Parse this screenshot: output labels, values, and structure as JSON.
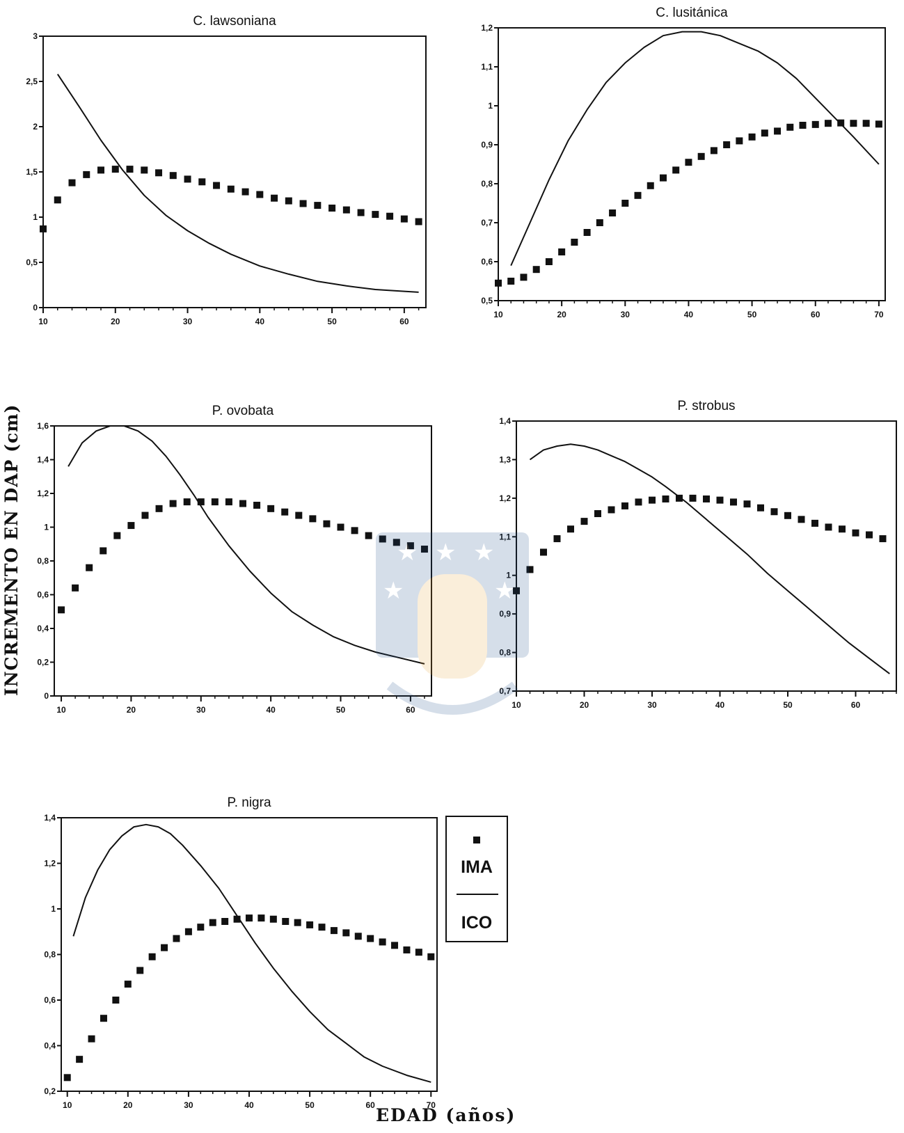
{
  "axis_labels": {
    "y": "INCREMENTO EN DAP (cm)",
    "x": "EDAD (años)"
  },
  "legend": {
    "ima_label": "IMA",
    "ico_label": "ICO",
    "ima_marker": "square-marker",
    "ico_marker": "line"
  },
  "colors": {
    "ink": "#111111"
  },
  "chart_data": [
    {
      "type": "line",
      "title": "C. lawsoniana",
      "xlim": [
        10,
        63
      ],
      "ylim": [
        0,
        3
      ],
      "xticks": [
        10,
        20,
        30,
        40,
        50,
        60
      ],
      "xticklabels": [
        "10",
        "20",
        "30",
        "40",
        "50",
        "60"
      ],
      "yticks": [
        0,
        0.5,
        1,
        1.5,
        2,
        2.5,
        3
      ],
      "yticklabels": [
        "0",
        "0,5",
        "1",
        "1,5",
        "2",
        "2,5",
        "3"
      ],
      "series": [
        {
          "name": "IMA",
          "style": "markers",
          "x": [
            10,
            12,
            14,
            16,
            18,
            20,
            22,
            24,
            26,
            28,
            30,
            32,
            34,
            36,
            38,
            40,
            42,
            44,
            46,
            48,
            50,
            52,
            54,
            56,
            58,
            60,
            62
          ],
          "y": [
            0.87,
            1.19,
            1.38,
            1.47,
            1.52,
            1.53,
            1.53,
            1.52,
            1.49,
            1.46,
            1.42,
            1.39,
            1.35,
            1.31,
            1.28,
            1.25,
            1.21,
            1.18,
            1.15,
            1.13,
            1.1,
            1.08,
            1.05,
            1.03,
            1.01,
            0.98,
            0.95
          ]
        },
        {
          "name": "ICO",
          "style": "line",
          "x": [
            12,
            15,
            18,
            21,
            24,
            27,
            30,
            33,
            36,
            40,
            44,
            48,
            52,
            56,
            60,
            62
          ],
          "y": [
            2.58,
            2.22,
            1.85,
            1.52,
            1.24,
            1.02,
            0.85,
            0.71,
            0.59,
            0.46,
            0.37,
            0.29,
            0.24,
            0.2,
            0.18,
            0.17
          ]
        }
      ]
    },
    {
      "type": "line",
      "title": "C. lusitánica",
      "xlim": [
        10,
        71
      ],
      "ylim": [
        0.5,
        1.2
      ],
      "xticks": [
        10,
        20,
        30,
        40,
        50,
        60,
        70
      ],
      "xticklabels": [
        "10",
        "20",
        "30",
        "40",
        "50",
        "60",
        "70"
      ],
      "yticks": [
        0.5,
        0.6,
        0.7,
        0.8,
        0.9,
        1,
        1.1,
        1.2
      ],
      "yticklabels": [
        "0,5",
        "0,6",
        "0,7",
        "0,8",
        "0,9",
        "1",
        "1,1",
        "1,2"
      ],
      "series": [
        {
          "name": "IMA",
          "style": "markers",
          "x": [
            10,
            12,
            14,
            16,
            18,
            20,
            22,
            24,
            26,
            28,
            30,
            32,
            34,
            36,
            38,
            40,
            42,
            44,
            46,
            48,
            50,
            52,
            54,
            56,
            58,
            60,
            62,
            64,
            66,
            68,
            70
          ],
          "y": [
            0.545,
            0.55,
            0.56,
            0.58,
            0.6,
            0.625,
            0.65,
            0.675,
            0.7,
            0.725,
            0.75,
            0.77,
            0.795,
            0.815,
            0.835,
            0.855,
            0.87,
            0.885,
            0.9,
            0.91,
            0.92,
            0.93,
            0.935,
            0.945,
            0.95,
            0.952,
            0.955,
            0.956,
            0.955,
            0.955,
            0.953
          ]
        },
        {
          "name": "ICO",
          "style": "line",
          "x": [
            12,
            15,
            18,
            21,
            24,
            27,
            30,
            33,
            36,
            39,
            42,
            45,
            48,
            51,
            54,
            57,
            60,
            63,
            66,
            70
          ],
          "y": [
            0.59,
            0.7,
            0.81,
            0.91,
            0.99,
            1.06,
            1.11,
            1.15,
            1.18,
            1.19,
            1.19,
            1.18,
            1.16,
            1.14,
            1.11,
            1.07,
            1.02,
            0.97,
            0.92,
            0.85
          ]
        }
      ]
    },
    {
      "type": "line",
      "title": "P. ovobata",
      "xlim": [
        9,
        63
      ],
      "ylim": [
        0,
        1.6
      ],
      "xticks": [
        10,
        20,
        30,
        40,
        50,
        60
      ],
      "xticklabels": [
        "10",
        "20",
        "30",
        "40",
        "50",
        "60"
      ],
      "yticks": [
        0,
        0.2,
        0.4,
        0.6,
        0.8,
        1,
        1.2,
        1.4,
        1.6
      ],
      "yticklabels": [
        "0",
        "0,2",
        "0,4",
        "0,6",
        "0,8",
        "1",
        "1,2",
        "1,4",
        "1,6"
      ],
      "series": [
        {
          "name": "IMA",
          "style": "markers",
          "x": [
            10,
            12,
            14,
            16,
            18,
            20,
            22,
            24,
            26,
            28,
            30,
            32,
            34,
            36,
            38,
            40,
            42,
            44,
            46,
            48,
            50,
            52,
            54,
            56,
            58,
            60,
            62
          ],
          "y": [
            0.51,
            0.64,
            0.76,
            0.86,
            0.95,
            1.01,
            1.07,
            1.11,
            1.14,
            1.15,
            1.15,
            1.15,
            1.15,
            1.14,
            1.13,
            1.11,
            1.09,
            1.07,
            1.05,
            1.02,
            1.0,
            0.98,
            0.95,
            0.93,
            0.91,
            0.89,
            0.87
          ]
        },
        {
          "name": "ICO",
          "style": "line",
          "x": [
            11,
            13,
            15,
            17,
            19,
            21,
            23,
            25,
            27,
            29,
            31,
            34,
            37,
            40,
            43,
            46,
            49,
            52,
            55,
            58,
            62
          ],
          "y": [
            1.36,
            1.5,
            1.57,
            1.6,
            1.6,
            1.57,
            1.51,
            1.42,
            1.31,
            1.19,
            1.06,
            0.89,
            0.74,
            0.61,
            0.5,
            0.42,
            0.35,
            0.3,
            0.26,
            0.23,
            0.19
          ]
        }
      ]
    },
    {
      "type": "line",
      "title": "P. strobus",
      "xlim": [
        10,
        66
      ],
      "ylim": [
        0.7,
        1.4
      ],
      "xticks": [
        10,
        20,
        30,
        40,
        50,
        60
      ],
      "xticklabels": [
        "10",
        "20",
        "30",
        "40",
        "50",
        "60"
      ],
      "yticks": [
        0.7,
        0.8,
        0.9,
        1,
        1.1,
        1.2,
        1.3,
        1.4
      ],
      "yticklabels": [
        "0,7",
        "0,8",
        "0,9",
        "1",
        "1,1",
        "1,2",
        "1,3",
        "1,4"
      ],
      "series": [
        {
          "name": "IMA",
          "style": "markers",
          "x": [
            10,
            12,
            14,
            16,
            18,
            20,
            22,
            24,
            26,
            28,
            30,
            32,
            34,
            36,
            38,
            40,
            42,
            44,
            46,
            48,
            50,
            52,
            54,
            56,
            58,
            60,
            62,
            64
          ],
          "y": [
            0.96,
            1.015,
            1.06,
            1.095,
            1.12,
            1.14,
            1.16,
            1.17,
            1.18,
            1.19,
            1.195,
            1.198,
            1.2,
            1.2,
            1.198,
            1.195,
            1.19,
            1.185,
            1.175,
            1.165,
            1.155,
            1.145,
            1.135,
            1.125,
            1.12,
            1.11,
            1.105,
            1.095
          ]
        },
        {
          "name": "ICO",
          "style": "line",
          "x": [
            12,
            14,
            16,
            18,
            20,
            22,
            24,
            26,
            28,
            30,
            32,
            35,
            38,
            41,
            44,
            47,
            50,
            53,
            56,
            59,
            62,
            65
          ],
          "y": [
            1.3,
            1.325,
            1.335,
            1.34,
            1.335,
            1.325,
            1.31,
            1.295,
            1.275,
            1.255,
            1.23,
            1.19,
            1.145,
            1.1,
            1.055,
            1.005,
            0.96,
            0.915,
            0.87,
            0.825,
            0.785,
            0.745
          ]
        }
      ]
    },
    {
      "type": "line",
      "title": "P. nigra",
      "xlim": [
        9,
        71
      ],
      "ylim": [
        0.2,
        1.4
      ],
      "xticks": [
        10,
        20,
        30,
        40,
        50,
        60,
        70
      ],
      "xticklabels": [
        "10",
        "20",
        "30",
        "40",
        "50",
        "60",
        "70"
      ],
      "yticks": [
        0.2,
        0.4,
        0.6,
        0.8,
        1,
        1.2,
        1.4
      ],
      "yticklabels": [
        "0,2",
        "0,4",
        "0,6",
        "0,8",
        "1",
        "1,2",
        "1,4"
      ],
      "series": [
        {
          "name": "IMA",
          "style": "markers",
          "x": [
            10,
            12,
            14,
            16,
            18,
            20,
            22,
            24,
            26,
            28,
            30,
            32,
            34,
            36,
            38,
            40,
            42,
            44,
            46,
            48,
            50,
            52,
            54,
            56,
            58,
            60,
            62,
            64,
            66,
            68,
            70
          ],
          "y": [
            0.26,
            0.34,
            0.43,
            0.52,
            0.6,
            0.67,
            0.73,
            0.79,
            0.83,
            0.87,
            0.9,
            0.92,
            0.94,
            0.945,
            0.955,
            0.96,
            0.96,
            0.955,
            0.945,
            0.94,
            0.93,
            0.92,
            0.905,
            0.895,
            0.88,
            0.87,
            0.855,
            0.84,
            0.82,
            0.81,
            0.79
          ]
        },
        {
          "name": "ICO",
          "style": "line",
          "x": [
            11,
            13,
            15,
            17,
            19,
            21,
            23,
            25,
            27,
            29,
            32,
            35,
            38,
            41,
            44,
            47,
            50,
            53,
            56,
            59,
            62,
            66,
            70
          ],
          "y": [
            0.88,
            1.05,
            1.17,
            1.26,
            1.32,
            1.36,
            1.37,
            1.36,
            1.33,
            1.28,
            1.19,
            1.09,
            0.97,
            0.85,
            0.74,
            0.64,
            0.55,
            0.47,
            0.41,
            0.35,
            0.31,
            0.27,
            0.24
          ]
        }
      ]
    }
  ]
}
